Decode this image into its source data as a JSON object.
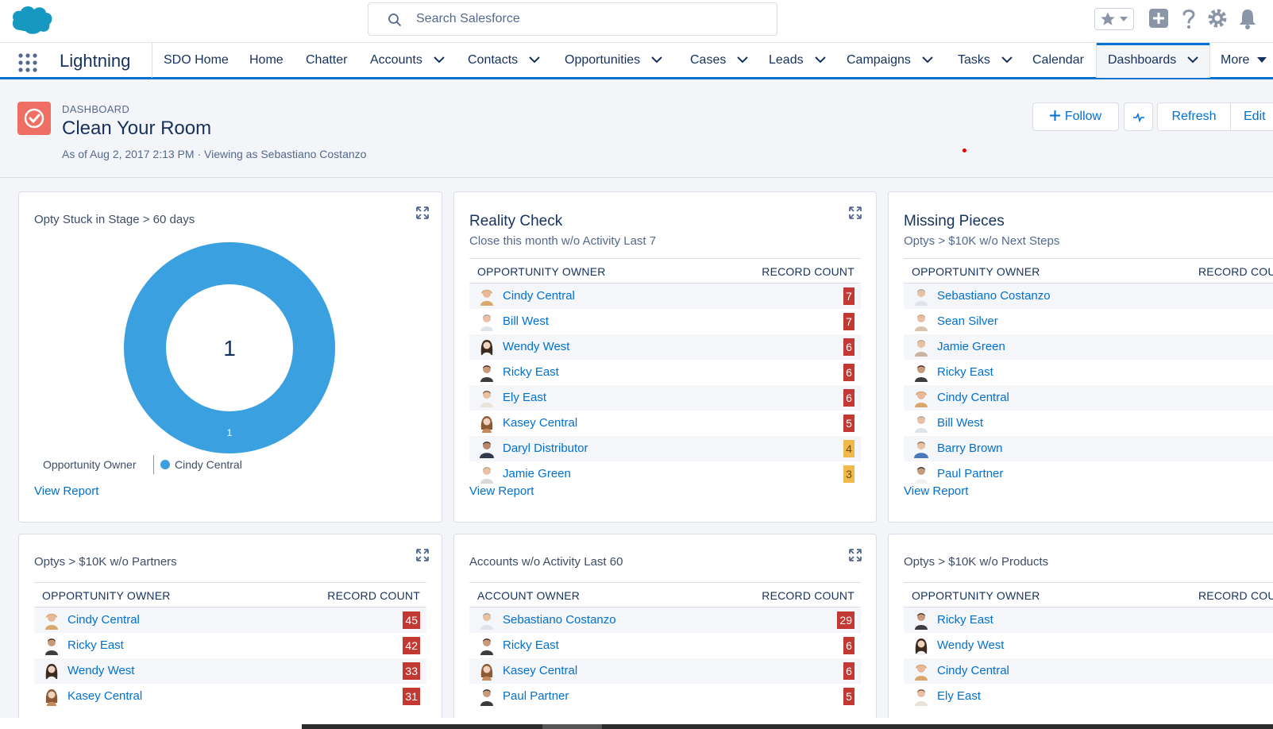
{
  "colors": {
    "brand_blue": "#0070d2",
    "donut_blue": "#3ba0e0",
    "badge_red": "#c23934",
    "badge_orange": "#f0b94b",
    "dashboard_icon": "#ef6e64"
  },
  "header": {
    "search_placeholder": "Search Salesforce",
    "icons": [
      "salesforce-cloud-icon",
      "search-icon",
      "star-icon",
      "chevron-down-icon",
      "plus-icon",
      "help-icon",
      "gear-icon",
      "bell-icon"
    ]
  },
  "nav": {
    "app_name": "Lightning",
    "items": [
      {
        "label": "SDO Home"
      },
      {
        "label": "Home"
      },
      {
        "label": "Chatter"
      },
      {
        "label": "Accounts"
      },
      {
        "label": "Contacts"
      },
      {
        "label": "Opportunities"
      },
      {
        "label": "Cases"
      },
      {
        "label": "Leads"
      },
      {
        "label": "Campaigns"
      },
      {
        "label": "Tasks"
      },
      {
        "label": "Calendar"
      },
      {
        "label": "Dashboards"
      },
      {
        "label": "More"
      }
    ],
    "active": "Dashboards"
  },
  "page": {
    "kicker": "DASHBOARD",
    "title": "Clean Your Room",
    "subtitle": "As of Aug 2, 2017 2:13 PM · Viewing as Sebastiano Costanzo",
    "buttons": {
      "follow": "Follow",
      "refresh": "Refresh",
      "edit": "Edit"
    }
  },
  "cards": {
    "stuck": {
      "title": "Opty Stuck in Stage > 60 days",
      "center_value": "1",
      "slice_label": "1",
      "legend_title": "Opportunity Owner",
      "legend_item": "Cindy Central",
      "view_report": "View Report"
    },
    "reality": {
      "title": "Reality Check",
      "subtitle": "Close this month w/o Activity Last 7",
      "col_owner": "OPPORTUNITY OWNER",
      "col_count": "RECORD COUNT",
      "rows": [
        {
          "name": "Cindy Central",
          "count": "7"
        },
        {
          "name": "Bill West",
          "count": "7"
        },
        {
          "name": "Wendy West",
          "count": "6"
        },
        {
          "name": "Ricky East",
          "count": "6"
        },
        {
          "name": "Ely East",
          "count": "6"
        },
        {
          "name": "Kasey Central",
          "count": "5"
        },
        {
          "name": "Daryl Distributor",
          "count": "4"
        },
        {
          "name": "Jamie Green",
          "count": "3"
        }
      ],
      "view_report": "View Report"
    },
    "missing": {
      "title": "Missing Pieces",
      "subtitle": "Optys > $10K w/o Next Steps",
      "col_owner": "OPPORTUNITY OWNER",
      "col_count": "RECORD COUNT",
      "rows": [
        {
          "name": "Sebastiano Costanzo"
        },
        {
          "name": "Sean Silver"
        },
        {
          "name": "Jamie Green"
        },
        {
          "name": "Ricky East"
        },
        {
          "name": "Cindy Central"
        },
        {
          "name": "Bill West"
        },
        {
          "name": "Barry Brown"
        },
        {
          "name": "Paul Partner"
        }
      ],
      "view_report": "View Report"
    },
    "partners": {
      "title": "Optys > $10K w/o Partners",
      "col_owner": "OPPORTUNITY OWNER",
      "col_count": "RECORD COUNT",
      "rows": [
        {
          "name": "Cindy Central",
          "count": "45"
        },
        {
          "name": "Ricky East",
          "count": "42"
        },
        {
          "name": "Wendy West",
          "count": "33"
        },
        {
          "name": "Kasey Central",
          "count": "31"
        }
      ]
    },
    "accounts": {
      "title": "Accounts w/o Activity Last 60",
      "col_owner": "ACCOUNT OWNER",
      "col_count": "RECORD COUNT",
      "rows": [
        {
          "name": "Sebastiano Costanzo",
          "count": "29"
        },
        {
          "name": "Ricky East",
          "count": "6"
        },
        {
          "name": "Kasey Central",
          "count": "6"
        },
        {
          "name": "Paul Partner",
          "count": "5"
        }
      ]
    },
    "products": {
      "title": "Optys > $10K w/o Products",
      "col_owner": "OPPORTUNITY OWNER",
      "col_count": "RECORD COUNT",
      "rows": [
        {
          "name": "Ricky East"
        },
        {
          "name": "Wendy West"
        },
        {
          "name": "Cindy Central"
        },
        {
          "name": "Ely East"
        }
      ]
    }
  }
}
